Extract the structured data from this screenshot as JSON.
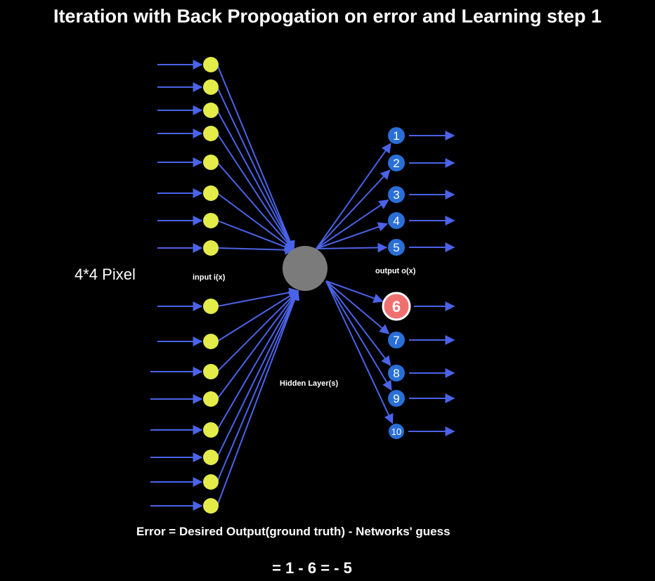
{
  "title": "Iteration with Back Propogation on error and Learning step 1",
  "pixel_label": "4*4 Pixel",
  "input_label": "input i(x)",
  "hidden_label": "Hidden Layer(s)",
  "output_label": "output o(x)",
  "error_formula": "Error =  Desired Output(ground truth) - Networks' guess",
  "error_result": "= 1 - 6 = - 5",
  "input_node_count": 16,
  "outputs": [
    "1",
    "2",
    "3",
    "4",
    "5",
    "6",
    "7",
    "8",
    "9",
    "10"
  ],
  "highlighted_output": "6",
  "colors": {
    "background": "#000000",
    "input_node": "#e4ec4a",
    "hidden_node": "#7b7b7b",
    "output_node": "#2a6fd8",
    "highlight_node": "#f07070",
    "edge": "#4a63e8"
  }
}
